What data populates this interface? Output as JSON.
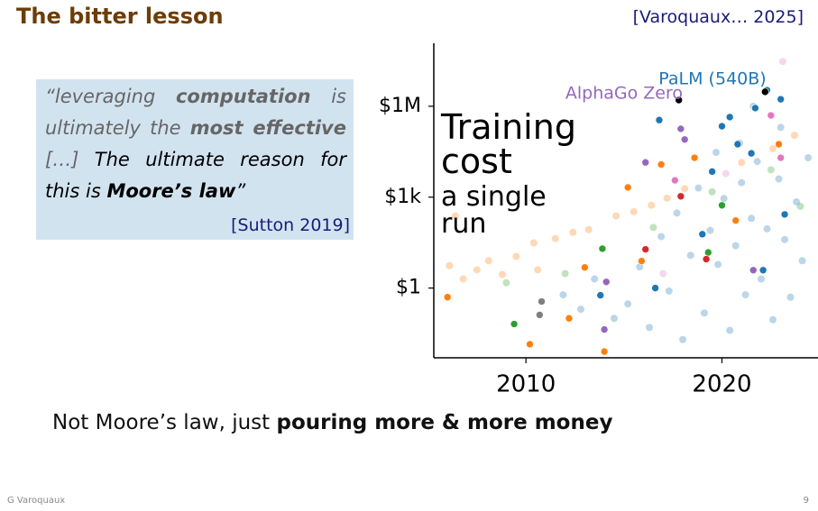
{
  "header": {
    "title": "The bitter lesson",
    "citation": "[Varoquaux… 2025]"
  },
  "quote": {
    "segments": [
      {
        "text": "“leveraging ",
        "bold": false,
        "color": "#666666"
      },
      {
        "text": "computation",
        "bold": true,
        "color": "#666666"
      },
      {
        "text": " is ultimately the ",
        "bold": false,
        "color": "#666666"
      },
      {
        "text": "most effective",
        "bold": true,
        "color": "#666666"
      },
      {
        "text": " […] ",
        "bold": false,
        "color": "#666666"
      },
      {
        "text": "The ultimate reason for this is ",
        "bold": false,
        "color": "#000000"
      },
      {
        "text": "Moore’s law",
        "bold": true,
        "color": "#000000"
      },
      {
        "text": "”",
        "bold": false,
        "color": "#000000"
      }
    ],
    "source": "[Sutton 2019]"
  },
  "bottom": {
    "segments": [
      {
        "text": "Not Moore’s law, just ",
        "bold": false
      },
      {
        "text": "pouring more & more money",
        "bold": true
      }
    ]
  },
  "footer": {
    "author": "G Varoquaux",
    "page": "9"
  },
  "chart_data": {
    "type": "scatter",
    "title": "Training cost",
    "subtitle": "a single run",
    "log_y": true,
    "xlim": [
      2005.3,
      2024.9
    ],
    "xticks": [
      2010,
      2020
    ],
    "ylim": [
      0.005,
      120000000
    ],
    "yticks": [
      {
        "value": 1,
        "label": "$1"
      },
      {
        "value": 1000,
        "label": "$1k"
      },
      {
        "value": 1000000,
        "label": "$1M"
      }
    ],
    "annotations": [
      {
        "text": "AlphaGo Zero",
        "color": "#9467bd"
      },
      {
        "text": "PaLM (540B)",
        "color": "#1f77b4"
      }
    ],
    "series": [
      {
        "color": "#ff7f0e",
        "opacity": 0.3,
        "x": [
          2006.1,
          2006.8,
          2007.5,
          2008.1,
          2008.8,
          2009.5,
          2010.4,
          2011.5,
          2012.4,
          2013.2,
          2014.6,
          2015.5,
          2016.4,
          2017.2,
          2018.1,
          2019.5,
          2021.0,
          2022.6,
          2023.7,
          2006.4,
          2010.6
        ],
        "values": [
          5.5,
          2,
          4,
          8,
          2.8,
          11,
          31,
          43,
          69,
          85,
          240,
          330,
          540,
          930,
          1900,
          7200,
          14000,
          40000,
          110000,
          240,
          4
        ]
      },
      {
        "color": "#1f77b4",
        "opacity": 0.3,
        "x": [
          2015.2,
          2015.8,
          2016.3,
          2016.9,
          2017.3,
          2017.7,
          2018.0,
          2018.4,
          2018.8,
          2019.1,
          2019.4,
          2019.8,
          2020.1,
          2020.4,
          2020.7,
          2021.0,
          2021.2,
          2021.5,
          2021.8,
          2022.0,
          2022.3,
          2022.6,
          2022.9,
          2023.2,
          2023.5,
          2023.8,
          2024.1,
          2024.4,
          2014.5,
          2013.5,
          2012.8,
          2011.9,
          2020.9,
          2019.7,
          2023.0,
          2021.6
        ],
        "values": [
          0.3,
          5,
          0.05,
          50,
          0.8,
          300,
          0.02,
          12,
          2000,
          0.15,
          80,
          6,
          900,
          0.04,
          25,
          3000,
          0.6,
          200,
          15000,
          2,
          90,
          0.09,
          4000,
          40,
          0.5,
          700,
          8,
          20000,
          0.1,
          2,
          0.2,
          0.6,
          60000,
          30000,
          200000,
          1000000
        ]
      },
      {
        "color": "#2ca02c",
        "opacity": 0.3,
        "x": [
          2009.0,
          2012.0,
          2016.5,
          2019.5,
          2022.5,
          2024.0
        ],
        "values": [
          1.5,
          3,
          100,
          1500,
          8000,
          500
        ]
      },
      {
        "color": "#e377c2",
        "opacity": 0.3,
        "x": [
          2023.1,
          2020.2,
          2017.0
        ],
        "values": [
          30000000,
          6000,
          3
        ]
      },
      {
        "color": "#1f77b4",
        "opacity": 1,
        "x": [
          2022.3,
          2021.7,
          2016.8,
          2020.0,
          2020.8,
          2019.5,
          2023.2,
          2016.6,
          2013.8,
          2022.1,
          2019.0,
          2020.4,
          2023.0,
          2021.5
        ],
        "values": [
          3400000,
          870000,
          350000,
          220000,
          56000,
          7000,
          270,
          1,
          0.58,
          3.9,
          60,
          440000,
          1700000,
          28000
        ]
      },
      {
        "color": "#ff7f0e",
        "opacity": 1,
        "x": [
          2006.0,
          2010.2,
          2012.2,
          2014.0,
          2015.2,
          2016.9,
          2018.6,
          2015.9,
          2020.7,
          2013.0,
          2022.9
        ],
        "values": [
          0.5,
          0.014,
          0.1,
          0.008,
          2100,
          12000,
          20000,
          7.8,
          170,
          4.8,
          56000
        ]
      },
      {
        "color": "#2ca02c",
        "opacity": 1,
        "x": [
          2009.4,
          2013.9,
          2020.0,
          2019.3
        ],
        "values": [
          0.065,
          20,
          540,
          15
        ]
      },
      {
        "color": "#d62728",
        "opacity": 1,
        "x": [
          2017.9,
          2019.2,
          2016.1
        ],
        "values": [
          1070,
          9,
          19
        ]
      },
      {
        "color": "#9467bd",
        "opacity": 1,
        "x": [
          2014.0,
          2014.1,
          2016.1,
          2017.9,
          2021.6,
          2018.1
        ],
        "values": [
          0.043,
          1.6,
          14000,
          180000,
          3.9,
          80000
        ]
      },
      {
        "color": "#e377c2",
        "opacity": 1,
        "x": [
          2022.5,
          2017.6,
          2023.0
        ],
        "values": [
          500000,
          3600,
          20000
        ]
      },
      {
        "color": "#7f7f7f",
        "opacity": 1,
        "x": [
          2010.8,
          2010.7
        ],
        "values": [
          0.36,
          0.13
        ]
      },
      {
        "color": "#000000",
        "opacity": 1,
        "x": [
          2017.8,
          2022.2
        ],
        "values": [
          1600000,
          3000000
        ]
      }
    ]
  }
}
